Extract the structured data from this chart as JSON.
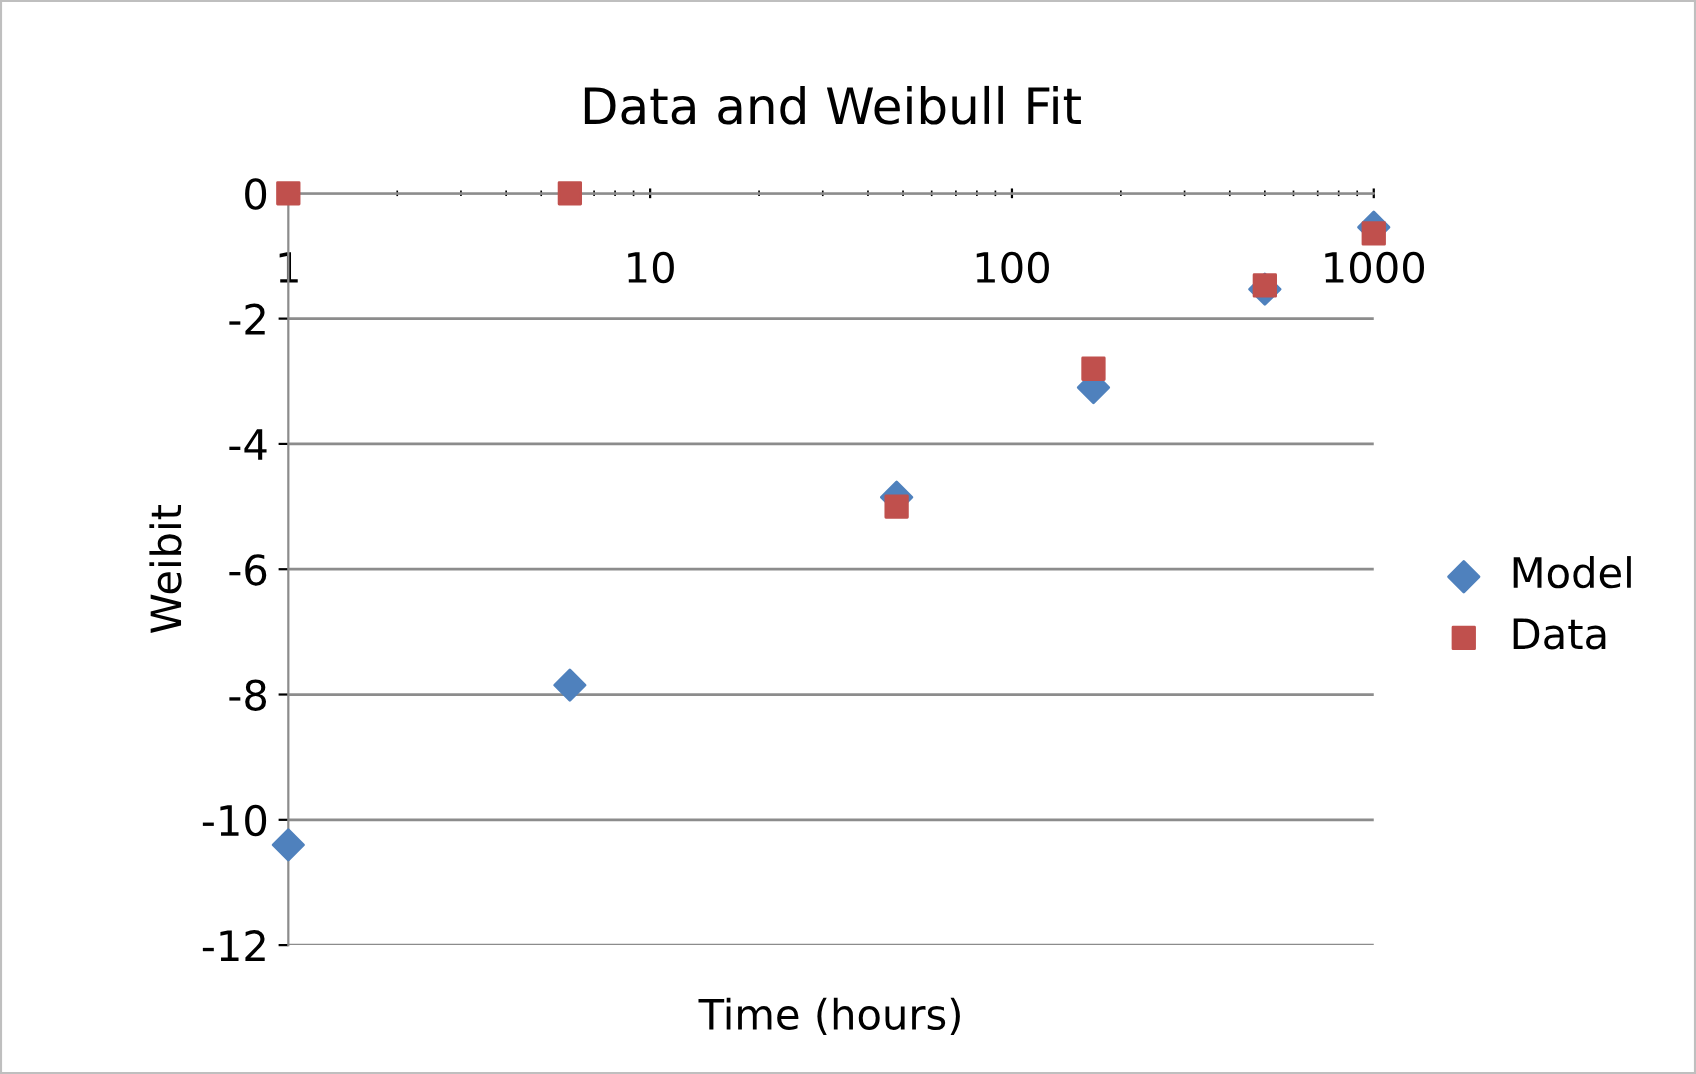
{
  "chart_data": {
    "type": "scatter",
    "title": "Data and Weibull Fit",
    "xlabel": "Time (hours)",
    "ylabel": "Weibit",
    "log": "x",
    "xlim": [
      1,
      1000
    ],
    "xticks": [
      1,
      10,
      100,
      1000
    ],
    "ylim": [
      -12,
      0
    ],
    "yticks": [
      -12,
      -10,
      -8,
      -6,
      -4,
      -2,
      0
    ],
    "grid": "y",
    "legend": "right",
    "x": [
      1,
      6,
      48,
      168,
      500,
      1000
    ],
    "series": [
      {
        "name": "Model",
        "color": "#4f81bd",
        "marker": "diamond",
        "values": [
          -10.4,
          -7.85,
          -4.85,
          -3.1,
          -1.53,
          -0.54
        ]
      },
      {
        "name": "Data",
        "color": "#c0504d",
        "marker": "square",
        "values": [
          0.0,
          0.0,
          -5.0,
          -2.8,
          -1.47,
          -0.64
        ]
      }
    ]
  }
}
